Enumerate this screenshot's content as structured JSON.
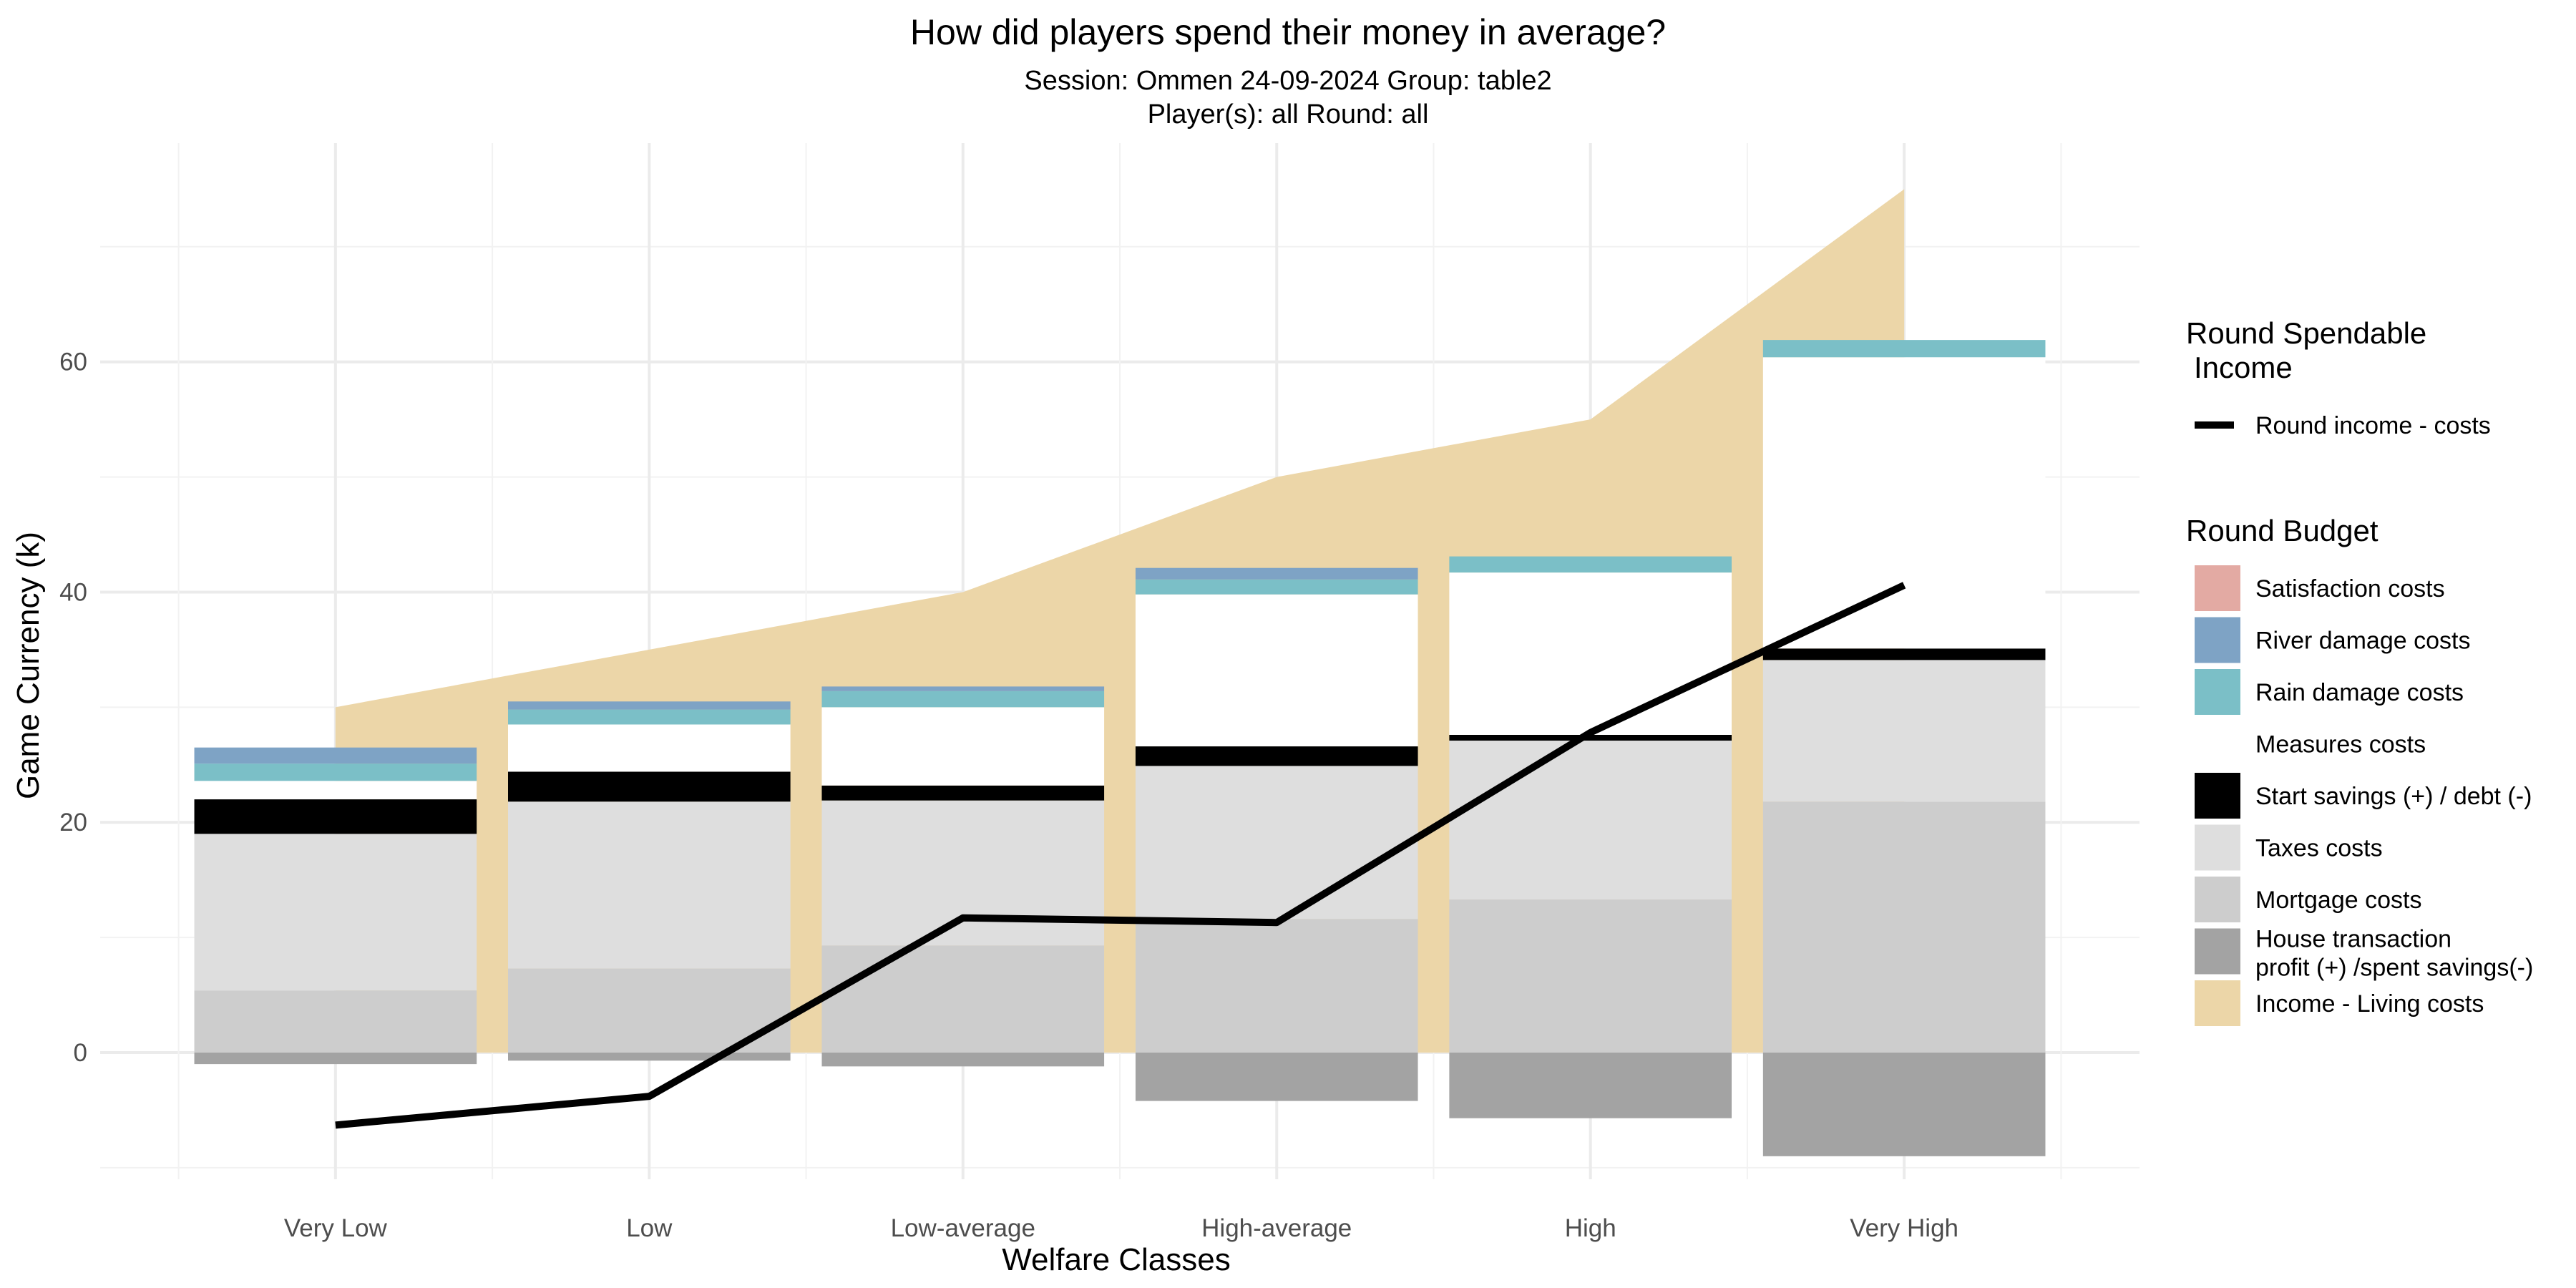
{
  "chart_data": {
    "type": "bar",
    "title": "How did players spend their money in average?",
    "subtitle_line1": "Session: Ommen 24-09-2024 Group: table2",
    "subtitle_line2": "Player(s): all Round: all",
    "xlabel": "Welfare Classes",
    "ylabel": "Game Currency (k)",
    "categories": [
      "Very Low",
      "Low",
      "Low-average",
      "High-average",
      "High",
      "Very High"
    ],
    "ylim": [
      -11,
      79
    ],
    "yticks": [
      0,
      20,
      40,
      60
    ],
    "grid": true,
    "legend_position": "right",
    "income_area": {
      "name": "Income - Living costs",
      "color": "#ecd6a8",
      "values": [
        30,
        35,
        40,
        50,
        55,
        75
      ]
    },
    "stacked_bars": [
      {
        "name": "House transaction profit (+) /spent savings(-)",
        "color": "#a3a3a3",
        "values": [
          -1,
          -0.7,
          -1.2,
          -4.2,
          -5.7,
          -9
        ]
      },
      {
        "name": "Mortgage costs",
        "color": "#cdcdcd",
        "values": [
          5.4,
          7.3,
          9.3,
          11.6,
          13.3,
          21.8
        ]
      },
      {
        "name": "Taxes costs",
        "color": "#dedede",
        "values": [
          13.6,
          14.5,
          12.6,
          13.3,
          13.8,
          12.3
        ]
      },
      {
        "name": "Start savings (+) / debt (-)",
        "color": "#000000",
        "values": [
          3,
          2.6,
          1.3,
          1.7,
          0.5,
          1
        ]
      },
      {
        "name": "Measures costs",
        "color": "#ffffff",
        "values": [
          1.6,
          4.1,
          6.8,
          13.2,
          14.1,
          25.3
        ]
      },
      {
        "name": "Rain damage costs",
        "color": "#7bbfc7",
        "values": [
          1.5,
          1.3,
          1.4,
          1.3,
          1.4,
          1.5
        ]
      },
      {
        "name": "River damage costs",
        "color": "#7ea3c5",
        "values": [
          1.4,
          0.7,
          0.4,
          1,
          0,
          0
        ]
      },
      {
        "name": "Satisfaction costs",
        "color": "#e3aaa3",
        "values": [
          0,
          0,
          0,
          0,
          0,
          0
        ]
      }
    ],
    "black_lines": [
      22,
      24.5,
      23,
      26.5,
      27.5,
      35
    ],
    "black_line_widths": [
      3,
      2.6,
      1.3,
      1.7,
      0.5,
      1
    ],
    "series": [
      {
        "name": "Round income - costs",
        "color": "#000000",
        "values": [
          -6.3,
          -3.8,
          11.7,
          11.3,
          27.8,
          40.6
        ]
      }
    ],
    "legend": {
      "group1_title_line1": "Round Spendable",
      "group1_title_line2": "Income",
      "group1_items": [
        {
          "label": "Round income - costs",
          "color": "#000000"
        }
      ],
      "group2_title": "Round Budget",
      "group2_items": [
        {
          "label": "Satisfaction costs",
          "color": "#e3aaa3"
        },
        {
          "label": "River damage costs",
          "color": "#7ea3c5"
        },
        {
          "label": "Rain damage costs",
          "color": "#7bbfc7"
        },
        {
          "label": "Measures costs",
          "color": "#ffffff"
        },
        {
          "label": "Start savings (+) / debt (-)",
          "color": "#000000"
        },
        {
          "label": "Taxes costs",
          "color": "#dedede"
        },
        {
          "label": "Mortgage costs",
          "color": "#cdcdcd"
        },
        {
          "label_line1": "House transaction",
          "label_line2": "profit (+) /spent savings(-)",
          "color": "#a3a3a3"
        },
        {
          "label": "Income - Living costs",
          "color": "#ecd6a8"
        }
      ]
    }
  }
}
